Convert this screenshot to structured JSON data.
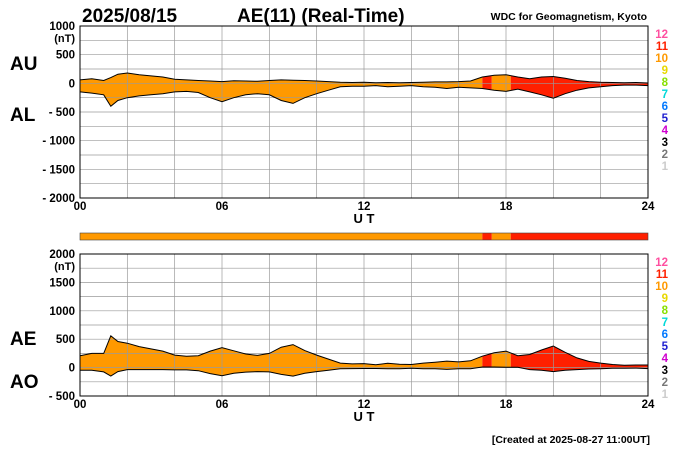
{
  "header": {
    "date": "2025/08/15",
    "title": "AE(11) (Real-Time)",
    "source": "WDC for Geomagnetism, Kyoto"
  },
  "footer": {
    "created": "[Created at 2025-08-27 11:00UT]"
  },
  "side_labels": {
    "au": "AU",
    "al": "AL",
    "ae": "AE",
    "ao": "AO"
  },
  "colors": {
    "station_count_colors": [
      "#ff4fa0",
      "#ff2000",
      "#ff9900",
      "#e8d800",
      "#88e000",
      "#00d8d8",
      "#0078ff",
      "#2020d0",
      "#d000d0",
      "#000000",
      "#777777",
      "#cccccc"
    ]
  },
  "chart_data": [
    {
      "type": "area",
      "name": "AU/AL",
      "title": "AE(11) (Real-Time)",
      "xlabel": "U T",
      "ylabel": "(nT)",
      "xlim": [
        0,
        24
      ],
      "ylim": [
        -2000,
        1000
      ],
      "xticks": [
        "00",
        "06",
        "12",
        "18",
        "24"
      ],
      "yticks": [
        "1000",
        "500",
        "0",
        "- 500",
        "- 1000",
        "- 1500",
        "- 2000"
      ],
      "legend": [
        "12",
        "11",
        "10",
        "9",
        "8",
        "7",
        "6",
        "5",
        "4",
        "3",
        "2",
        "1"
      ],
      "series": [
        {
          "name": "AU",
          "x": [
            0,
            0.5,
            1,
            1.3,
            1.6,
            2,
            2.5,
            3,
            3.5,
            4,
            4.5,
            5,
            5.5,
            6,
            6.5,
            7,
            7.5,
            8,
            8.5,
            9,
            9.5,
            10,
            10.5,
            11,
            11.5,
            12,
            12.5,
            13,
            13.5,
            14,
            14.5,
            15,
            15.5,
            16,
            16.5,
            17,
            17.5,
            18,
            18.5,
            19,
            19.5,
            20,
            20.5,
            21,
            21.5,
            22,
            22.5,
            23,
            23.5,
            24
          ],
          "values": [
            60,
            80,
            50,
            100,
            160,
            180,
            150,
            130,
            110,
            70,
            60,
            50,
            40,
            30,
            45,
            40,
            35,
            50,
            60,
            55,
            50,
            40,
            30,
            20,
            15,
            20,
            10,
            15,
            10,
            15,
            20,
            25,
            25,
            30,
            40,
            110,
            140,
            150,
            110,
            80,
            110,
            120,
            90,
            50,
            30,
            20,
            15,
            10,
            15,
            5
          ]
        },
        {
          "name": "AL",
          "x": [
            0,
            0.5,
            1,
            1.3,
            1.6,
            2,
            2.5,
            3,
            3.5,
            4,
            4.5,
            5,
            5.5,
            6,
            6.5,
            7,
            7.5,
            8,
            8.5,
            9,
            9.5,
            10,
            10.5,
            11,
            11.5,
            12,
            12.5,
            13,
            13.5,
            14,
            14.5,
            15,
            15.5,
            16,
            16.5,
            17,
            17.5,
            18,
            18.5,
            19,
            19.5,
            20,
            20.5,
            21,
            21.5,
            22,
            22.5,
            23,
            23.5,
            24
          ],
          "values": [
            -150,
            -170,
            -200,
            -400,
            -300,
            -250,
            -220,
            -200,
            -180,
            -150,
            -140,
            -160,
            -250,
            -320,
            -250,
            -200,
            -180,
            -200,
            -300,
            -350,
            -250,
            -180,
            -120,
            -60,
            -50,
            -50,
            -40,
            -60,
            -50,
            -40,
            -60,
            -70,
            -90,
            -70,
            -80,
            -90,
            -120,
            -140,
            -100,
            -150,
            -200,
            -260,
            -180,
            -120,
            -80,
            -60,
            -40,
            -30,
            -30,
            -40
          ]
        }
      ],
      "station_bar": [
        {
          "x0": 0,
          "x1": 17,
          "count": 10
        },
        {
          "x0": 17,
          "x1": 17.4,
          "count": 11
        },
        {
          "x0": 17.4,
          "x1": 18.2,
          "count": 10
        },
        {
          "x0": 18.2,
          "x1": 24,
          "count": 11
        }
      ]
    },
    {
      "type": "area",
      "name": "AE/AO",
      "xlabel": "U T",
      "ylabel": "(nT)",
      "xlim": [
        0,
        24
      ],
      "ylim": [
        -500,
        2000
      ],
      "xticks": [
        "00",
        "06",
        "12",
        "18",
        "24"
      ],
      "yticks": [
        "2000",
        "1500",
        "1000",
        "500",
        "0",
        "- 500"
      ],
      "legend": [
        "12",
        "11",
        "10",
        "9",
        "8",
        "7",
        "6",
        "5",
        "4",
        "3",
        "2",
        "1"
      ],
      "series": [
        {
          "name": "AE",
          "x": [
            0,
            0.5,
            1,
            1.3,
            1.6,
            2,
            2.5,
            3,
            3.5,
            4,
            4.5,
            5,
            5.5,
            6,
            6.5,
            7,
            7.5,
            8,
            8.5,
            9,
            9.5,
            10,
            10.5,
            11,
            11.5,
            12,
            12.5,
            13,
            13.5,
            14,
            14.5,
            15,
            15.5,
            16,
            16.5,
            17,
            17.5,
            18,
            18.5,
            19,
            19.5,
            20,
            20.5,
            21,
            21.5,
            22,
            22.5,
            23,
            23.5,
            24
          ],
          "values": [
            210,
            250,
            250,
            560,
            460,
            430,
            370,
            330,
            290,
            220,
            200,
            210,
            290,
            350,
            295,
            240,
            215,
            250,
            360,
            405,
            300,
            220,
            150,
            80,
            65,
            70,
            50,
            75,
            60,
            55,
            80,
            95,
            115,
            100,
            120,
            200,
            260,
            290,
            210,
            230,
            310,
            380,
            270,
            170,
            110,
            80,
            55,
            40,
            45,
            45
          ]
        },
        {
          "name": "AO",
          "x": [
            0,
            0.5,
            1,
            1.3,
            1.6,
            2,
            2.5,
            3,
            3.5,
            4,
            4.5,
            5,
            5.5,
            6,
            6.5,
            7,
            7.5,
            8,
            8.5,
            9,
            9.5,
            10,
            10.5,
            11,
            11.5,
            12,
            12.5,
            13,
            13.5,
            14,
            14.5,
            15,
            15.5,
            16,
            16.5,
            17,
            17.5,
            18,
            18.5,
            19,
            19.5,
            20,
            20.5,
            21,
            21.5,
            22,
            22.5,
            23,
            23.5,
            24
          ],
          "values": [
            -45,
            -45,
            -75,
            -150,
            -70,
            -35,
            -35,
            -35,
            -35,
            -40,
            -40,
            -55,
            -105,
            -145,
            -100,
            -80,
            -70,
            -75,
            -120,
            -150,
            -100,
            -70,
            -45,
            -20,
            -18,
            -15,
            -15,
            -22,
            -20,
            -12,
            -20,
            -22,
            -32,
            -20,
            -20,
            10,
            10,
            5,
            5,
            -35,
            -45,
            -70,
            -45,
            -35,
            -25,
            -20,
            -12,
            -10,
            -8,
            -18
          ]
        }
      ]
    }
  ]
}
